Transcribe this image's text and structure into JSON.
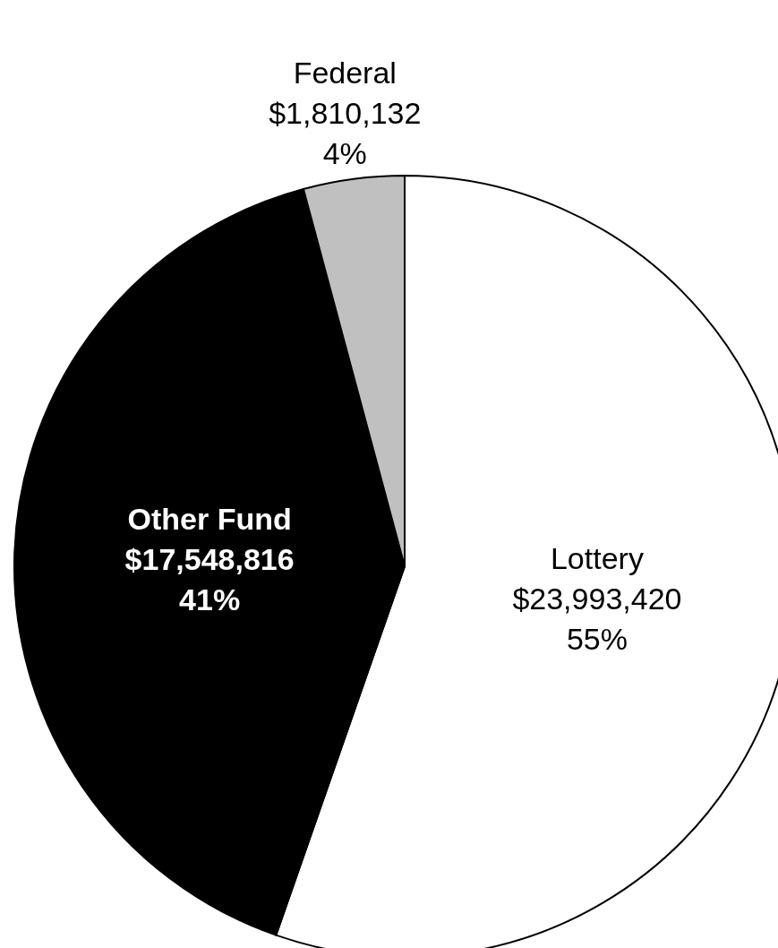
{
  "chart_data": {
    "type": "pie",
    "categories": [
      "Lottery",
      "Other Fund",
      "Federal"
    ],
    "values": [
      23993420,
      17548816,
      1810132
    ],
    "colors": [
      "#ffffff",
      "#000000",
      "#c0c0c0"
    ],
    "value_labels": [
      "$23,993,420\n55%",
      "$17,548,816\n41%",
      "$1,810,132\n4%"
    ]
  }
}
